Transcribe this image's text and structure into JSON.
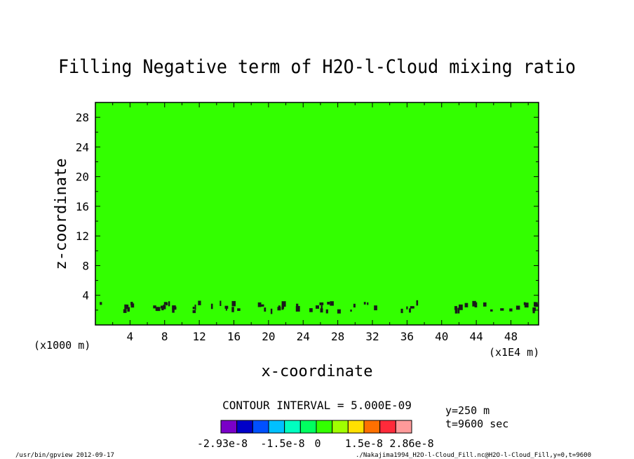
{
  "chart_data": {
    "type": "heatmap",
    "title": "Filling Negative term of H2O-l-Cloud mixing ratio",
    "xlabel": "x-coordinate",
    "ylabel": "z-coordinate",
    "x_unit": "(x1E4 m)",
    "y_unit": "(x1000 m)",
    "xlim": [
      0,
      51.2
    ],
    "ylim": [
      0,
      30
    ],
    "x_ticks": [
      4,
      8,
      12,
      16,
      20,
      24,
      28,
      32,
      36,
      40,
      44,
      48
    ],
    "y_ticks": [
      4,
      8,
      12,
      16,
      20,
      24,
      28
    ],
    "x_tick_labels": [
      "4",
      "8",
      "12",
      "16",
      "20",
      "24",
      "28",
      "32",
      "36",
      "40",
      "44",
      "48"
    ],
    "y_tick_labels": [
      "4",
      "8",
      "12",
      "16",
      "20",
      "24",
      "28"
    ],
    "background_color": "#33ff00",
    "contour_color": "#1a1a1a",
    "contour_interval_label": "CONTOUR INTERVAL = 5.000E-09",
    "info_y": "y=250 m",
    "info_t": "t=9600 sec",
    "colorbar": {
      "colors": [
        "#7a00c8",
        "#0000c8",
        "#0050ff",
        "#00c0ff",
        "#00ffc0",
        "#00ff60",
        "#33ff00",
        "#a0ff00",
        "#ffe000",
        "#ff7000",
        "#ff2a3a",
        "#ff9a9a"
      ],
      "labels": [
        "-2.93e-8",
        "-1.5e-8",
        "0",
        "1.5e-8",
        "2.86e-8"
      ]
    },
    "footer_left": "/usr/bin/gpview  2012-09-17",
    "footer_right": "./Nakajima1994_H2O-l-Cloud_Fill.nc@H2O-l-Cloud_Fill,y=0,t=9600"
  }
}
